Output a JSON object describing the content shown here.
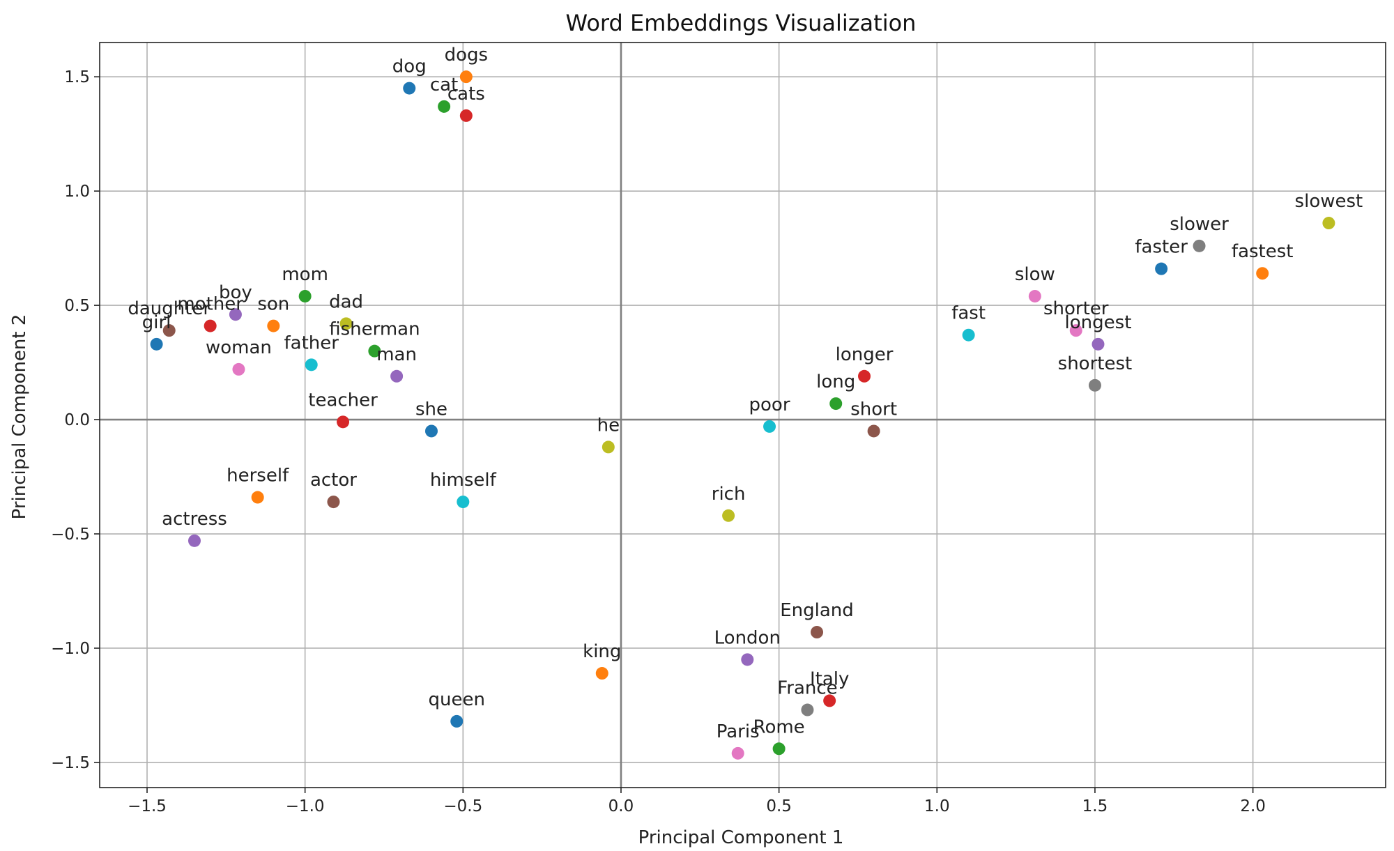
{
  "chart_data": {
    "type": "scatter",
    "title": "Word Embeddings Visualization",
    "xlabel": "Principal Component 1",
    "ylabel": "Principal Component 2",
    "xlim": [
      -1.65,
      2.42
    ],
    "ylim": [
      -1.61,
      1.65
    ],
    "xticks": [
      -1.5,
      -1.0,
      -0.5,
      0.0,
      0.5,
      1.0,
      1.5,
      2.0
    ],
    "yticks": [
      -1.5,
      -1.0,
      -0.5,
      0.0,
      0.5,
      1.0,
      1.5
    ],
    "xtick_labels": [
      "−1.5",
      "−1.0",
      "−0.5",
      "0.0",
      "0.5",
      "1.0",
      "1.5",
      "2.0"
    ],
    "ytick_labels": [
      "−1.5",
      "−1.0",
      "−0.5",
      "0.0",
      "0.5",
      "1.0",
      "1.5"
    ],
    "grid": true,
    "zero_lines": true,
    "points": [
      {
        "label": "dog",
        "x": -0.67,
        "y": 1.45,
        "color": "#1f77b4"
      },
      {
        "label": "dogs",
        "x": -0.49,
        "y": 1.5,
        "color": "#ff7f0e"
      },
      {
        "label": "cat",
        "x": -0.56,
        "y": 1.37,
        "color": "#2ca02c"
      },
      {
        "label": "cats",
        "x": -0.49,
        "y": 1.33,
        "color": "#d62728"
      },
      {
        "label": "mom",
        "x": -1.0,
        "y": 0.54,
        "color": "#2ca02c"
      },
      {
        "label": "dad",
        "x": -0.87,
        "y": 0.42,
        "color": "#bcbd22"
      },
      {
        "label": "boy",
        "x": -1.22,
        "y": 0.46,
        "color": "#9467bd"
      },
      {
        "label": "son",
        "x": -1.1,
        "y": 0.41,
        "color": "#ff7f0e"
      },
      {
        "label": "mother",
        "x": -1.3,
        "y": 0.41,
        "color": "#d62728"
      },
      {
        "label": "daughter",
        "x": -1.43,
        "y": 0.39,
        "color": "#8c564b"
      },
      {
        "label": "girl",
        "x": -1.47,
        "y": 0.33,
        "color": "#1f77b4"
      },
      {
        "label": "woman",
        "x": -1.21,
        "y": 0.22,
        "color": "#e377c2"
      },
      {
        "label": "father",
        "x": -0.98,
        "y": 0.24,
        "color": "#17becf"
      },
      {
        "label": "fisherman",
        "x": -0.78,
        "y": 0.3,
        "color": "#2ca02c"
      },
      {
        "label": "man",
        "x": -0.71,
        "y": 0.19,
        "color": "#9467bd"
      },
      {
        "label": "teacher",
        "x": -0.88,
        "y": -0.01,
        "color": "#d62728"
      },
      {
        "label": "she",
        "x": -0.6,
        "y": -0.05,
        "color": "#1f77b4"
      },
      {
        "label": "he",
        "x": -0.04,
        "y": -0.12,
        "color": "#bcbd22"
      },
      {
        "label": "herself",
        "x": -1.15,
        "y": -0.34,
        "color": "#ff7f0e"
      },
      {
        "label": "actor",
        "x": -0.91,
        "y": -0.36,
        "color": "#8c564b"
      },
      {
        "label": "himself",
        "x": -0.5,
        "y": -0.36,
        "color": "#17becf"
      },
      {
        "label": "actress",
        "x": -1.35,
        "y": -0.53,
        "color": "#9467bd"
      },
      {
        "label": "king",
        "x": -0.06,
        "y": -1.11,
        "color": "#ff7f0e"
      },
      {
        "label": "queen",
        "x": -0.52,
        "y": -1.32,
        "color": "#1f77b4"
      },
      {
        "label": "poor",
        "x": 0.47,
        "y": -0.03,
        "color": "#17becf"
      },
      {
        "label": "rich",
        "x": 0.34,
        "y": -0.42,
        "color": "#bcbd22"
      },
      {
        "label": "long",
        "x": 0.68,
        "y": 0.07,
        "color": "#2ca02c"
      },
      {
        "label": "longer",
        "x": 0.77,
        "y": 0.19,
        "color": "#d62728"
      },
      {
        "label": "short",
        "x": 0.8,
        "y": -0.05,
        "color": "#8c564b"
      },
      {
        "label": "fast",
        "x": 1.1,
        "y": 0.37,
        "color": "#17becf"
      },
      {
        "label": "slow",
        "x": 1.31,
        "y": 0.54,
        "color": "#e377c2"
      },
      {
        "label": "shorter",
        "x": 1.44,
        "y": 0.39,
        "color": "#e377c2"
      },
      {
        "label": "longest",
        "x": 1.51,
        "y": 0.33,
        "color": "#9467bd"
      },
      {
        "label": "shortest",
        "x": 1.5,
        "y": 0.15,
        "color": "#7f7f7f"
      },
      {
        "label": "faster",
        "x": 1.71,
        "y": 0.66,
        "color": "#1f77b4"
      },
      {
        "label": "slower",
        "x": 1.83,
        "y": 0.76,
        "color": "#7f7f7f"
      },
      {
        "label": "fastest",
        "x": 2.03,
        "y": 0.64,
        "color": "#ff7f0e"
      },
      {
        "label": "slowest",
        "x": 2.24,
        "y": 0.86,
        "color": "#bcbd22"
      },
      {
        "label": "England",
        "x": 0.62,
        "y": -0.93,
        "color": "#8c564b"
      },
      {
        "label": "London",
        "x": 0.4,
        "y": -1.05,
        "color": "#9467bd"
      },
      {
        "label": "France",
        "x": 0.59,
        "y": -1.27,
        "color": "#7f7f7f"
      },
      {
        "label": "Italy",
        "x": 0.66,
        "y": -1.23,
        "color": "#d62728"
      },
      {
        "label": "Paris",
        "x": 0.37,
        "y": -1.46,
        "color": "#e377c2"
      },
      {
        "label": "Rome",
        "x": 0.5,
        "y": -1.44,
        "color": "#2ca02c"
      }
    ]
  }
}
